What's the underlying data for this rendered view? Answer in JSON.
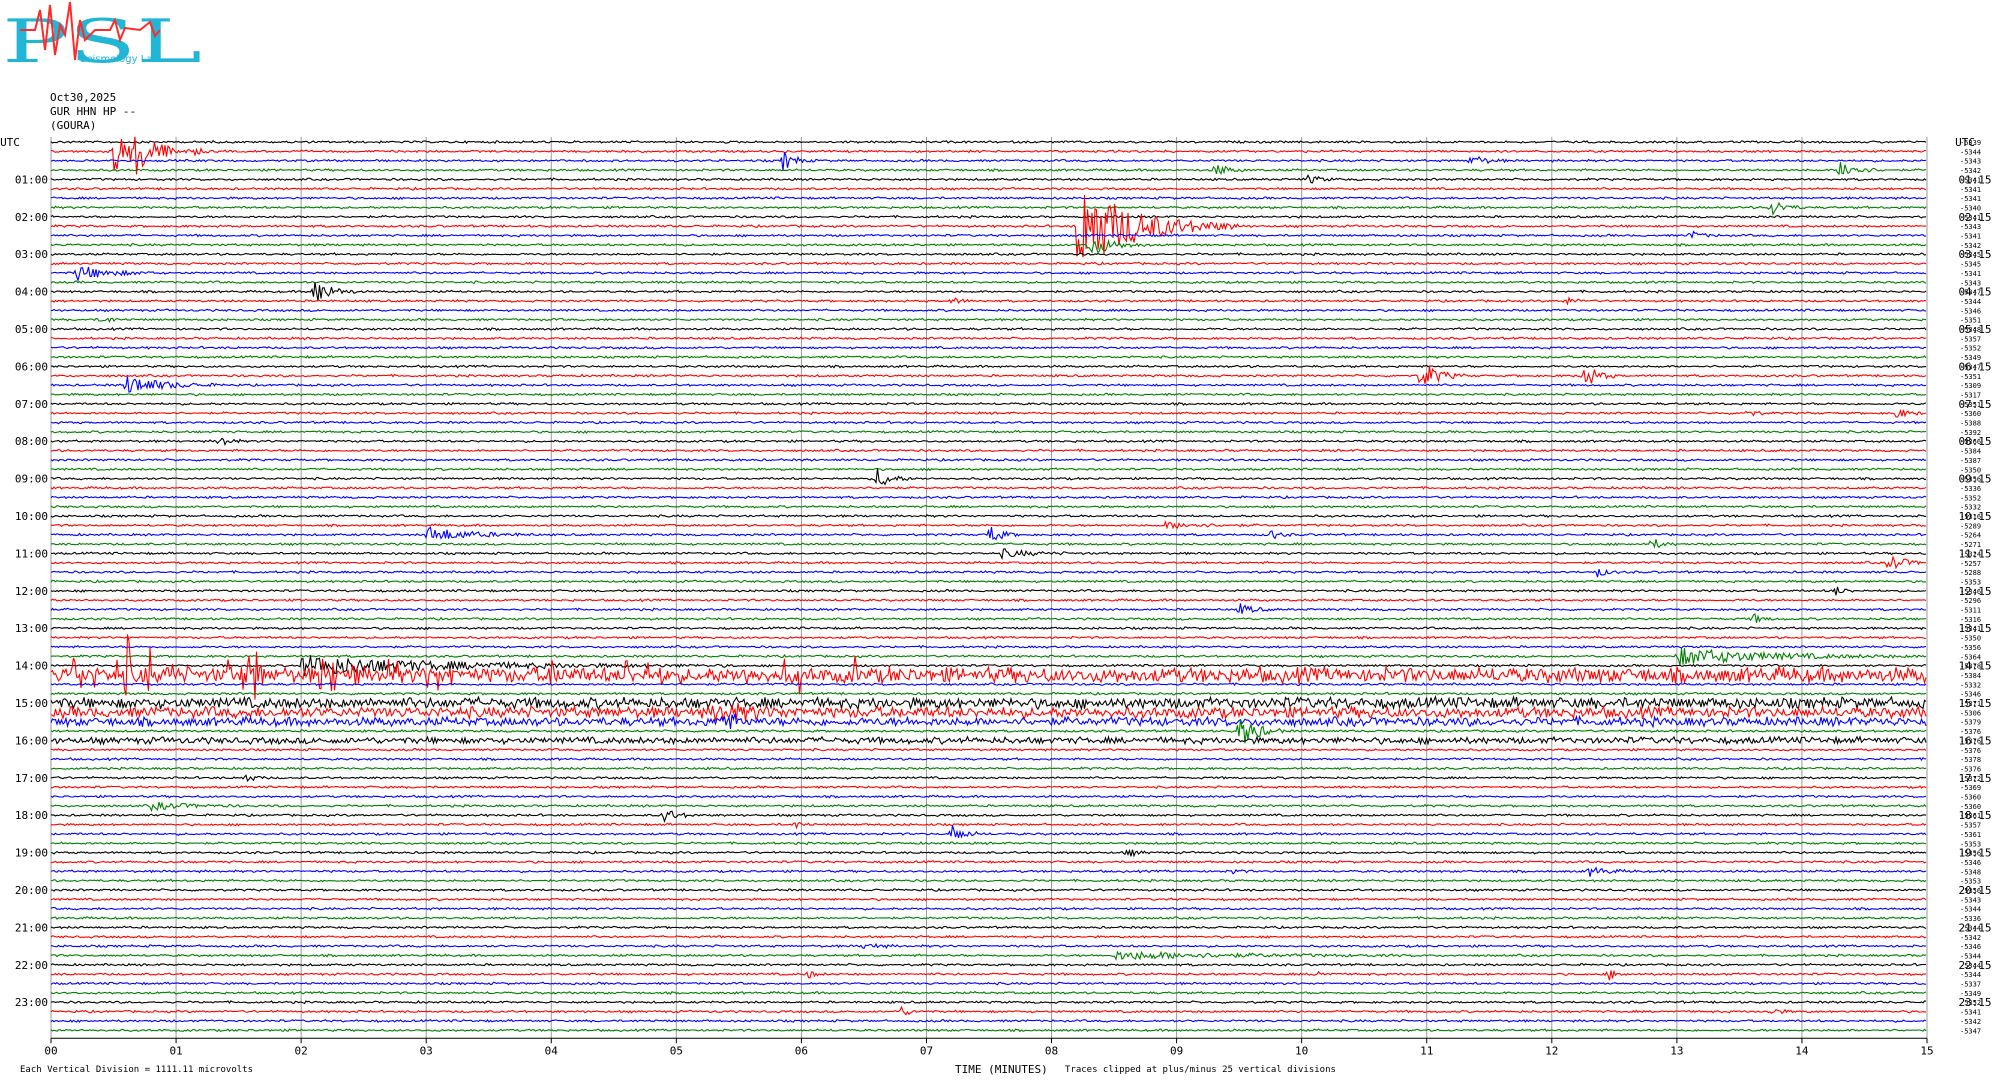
{
  "header": {
    "logo_text": "PSL",
    "logo_subtext": "Seismology Lab",
    "date": "Oct30,2025",
    "channel": "GUR HHN HP --",
    "station": "(GOURA)"
  },
  "footer": {
    "scale_note": "Each Vertical Division = 1111.11 microvolts",
    "clip_note": "Traces clipped at plus/minus 25 vertical divisions"
  },
  "colors": {
    "trace_cycle": [
      "#000000",
      "#ff0000",
      "#0000ff",
      "#008000"
    ],
    "grid": "#9a9a9a",
    "logo": "#21b5d6",
    "logo_red": "#ff2a2a"
  },
  "chart_data": {
    "type": "helicorder",
    "xlabel": "TIME (MINUTES)",
    "xlim": [
      0,
      15
    ],
    "x_ticks": [
      "00",
      "01",
      "02",
      "03",
      "04",
      "05",
      "06",
      "07",
      "08",
      "09",
      "10",
      "11",
      "12",
      "13",
      "14",
      "15"
    ],
    "left_axis_title": "UTC",
    "right_axis_title": "UTC",
    "left_hour_labels": [
      "01:00",
      "02:00",
      "03:00",
      "04:00",
      "05:00",
      "06:00",
      "07:00",
      "08:00",
      "09:00",
      "10:00",
      "11:00",
      "12:00",
      "13:00",
      "14:00",
      "15:00",
      "16:00",
      "17:00",
      "18:00",
      "19:00",
      "20:00",
      "21:00",
      "22:00",
      "23:00"
    ],
    "right_hour_labels": [
      "01:15",
      "02:15",
      "03:15",
      "04:15",
      "05:15",
      "06:15",
      "07:15",
      "08:15",
      "09:15",
      "10:15",
      "11:15",
      "12:15",
      "13:15",
      "14:15",
      "15:15",
      "16:15",
      "17:15",
      "18:15",
      "19:15",
      "20:15",
      "21:15",
      "22:15",
      "23:15"
    ],
    "trace_count": 96,
    "minutes_per_line": 15,
    "trace_offsets": [
      "-5339",
      "-5344",
      "-5343",
      "-5342",
      "-5341",
      "-5341",
      "-5341",
      "-5340",
      "-5341",
      "-5343",
      "-5341",
      "-5342",
      "-5345",
      "-5345",
      "-5341",
      "-5343",
      "-5347",
      "-5344",
      "-5346",
      "-5351",
      "-5348",
      "-5357",
      "-5352",
      "-5349",
      "-5347",
      "-5351",
      "-5309",
      "-5317",
      "-5351",
      "-5360",
      "-5388",
      "-5392",
      "-5366",
      "-5384",
      "-5387",
      "-5350",
      "-5356",
      "-5336",
      "-5352",
      "-5332",
      "-5316",
      "-5289",
      "-5264",
      "-5271",
      "-5324",
      "-5257",
      "-5288",
      "-5353",
      "-5346",
      "-5296",
      "-5311",
      "-5316",
      "-5341",
      "-5350",
      "-5356",
      "-5364",
      "-5378",
      "-5384",
      "-5332",
      "-5346",
      "-5371",
      "-5306",
      "-5379",
      "-5376",
      "-5376",
      "-5376",
      "-5378",
      "-5376",
      "-5372",
      "-5369",
      "-5360",
      "-5360",
      "-5361",
      "-5357",
      "-5361",
      "-5353",
      "-5356",
      "-5346",
      "-5348",
      "-5353",
      "-5356",
      "-5343",
      "-5344",
      "-5336",
      "-5344",
      "-5342",
      "-5346",
      "-5344",
      "-5344",
      "-5344",
      "-5337",
      "-5349",
      "-5352",
      "-5341",
      "-5342",
      "-5347"
    ],
    "events": [
      {
        "row": 1,
        "minute": 0.5,
        "amp": 24,
        "dur": 0.5
      },
      {
        "row": 1,
        "minute": 0.68,
        "amp": 20,
        "dur": 0.45
      },
      {
        "row": 1,
        "minute": 1.15,
        "amp": 4,
        "dur": 0.15
      },
      {
        "row": 2,
        "minute": 5.85,
        "amp": 11,
        "dur": 0.25
      },
      {
        "row": 2,
        "minute": 11.35,
        "amp": 7,
        "dur": 0.3
      },
      {
        "row": 3,
        "minute": 9.3,
        "amp": 7,
        "dur": 0.3
      },
      {
        "row": 3,
        "minute": 14.3,
        "amp": 12,
        "dur": 0.35
      },
      {
        "row": 4,
        "minute": 10.05,
        "amp": 4,
        "dur": 0.3
      },
      {
        "row": 7,
        "minute": 13.75,
        "amp": 9,
        "dur": 0.3
      },
      {
        "row": 9,
        "minute": 8.2,
        "amp": 48,
        "dur": 1.3
      },
      {
        "row": 10,
        "minute": 13.1,
        "amp": 5,
        "dur": 0.25
      },
      {
        "row": 11,
        "minute": 8.3,
        "amp": 12,
        "dur": 0.5
      },
      {
        "row": 14,
        "minute": 0.2,
        "amp": 8,
        "dur": 0.7
      },
      {
        "row": 16,
        "minute": 2.1,
        "amp": 16,
        "dur": 0.35
      },
      {
        "row": 17,
        "minute": 12.1,
        "amp": 5,
        "dur": 0.2
      },
      {
        "row": 17,
        "minute": 7.2,
        "amp": 4,
        "dur": 0.2
      },
      {
        "row": 19,
        "minute": 0.4,
        "amp": 5,
        "dur": 0.2
      },
      {
        "row": 25,
        "minute": 10.95,
        "amp": 18,
        "dur": 0.35
      },
      {
        "row": 25,
        "minute": 12.25,
        "amp": 14,
        "dur": 0.3
      },
      {
        "row": 26,
        "minute": 0.6,
        "amp": 10,
        "dur": 0.8
      },
      {
        "row": 29,
        "minute": 13.55,
        "amp": 5,
        "dur": 0.2
      },
      {
        "row": 29,
        "minute": 14.75,
        "amp": 5,
        "dur": 0.3
      },
      {
        "row": 32,
        "minute": 1.35,
        "amp": 7,
        "dur": 0.2
      },
      {
        "row": 36,
        "minute": 6.6,
        "amp": 12,
        "dur": 0.3
      },
      {
        "row": 42,
        "minute": 3.0,
        "amp": 8,
        "dur": 0.9
      },
      {
        "row": 42,
        "minute": 7.5,
        "amp": 11,
        "dur": 0.25
      },
      {
        "row": 42,
        "minute": 9.75,
        "amp": 5,
        "dur": 0.2
      },
      {
        "row": 41,
        "minute": 8.9,
        "amp": 3,
        "dur": 0.9
      },
      {
        "row": 43,
        "minute": 12.8,
        "amp": 7,
        "dur": 0.2
      },
      {
        "row": 44,
        "minute": 7.6,
        "amp": 4,
        "dur": 0.7
      },
      {
        "row": 45,
        "minute": 14.7,
        "amp": 10,
        "dur": 0.3
      },
      {
        "row": 46,
        "minute": 12.35,
        "amp": 6,
        "dur": 0.2
      },
      {
        "row": 48,
        "minute": 14.25,
        "amp": 6,
        "dur": 0.2
      },
      {
        "row": 50,
        "minute": 9.5,
        "amp": 6,
        "dur": 0.3
      },
      {
        "row": 51,
        "minute": 13.6,
        "amp": 6,
        "dur": 0.2
      },
      {
        "row": 56,
        "minute": 2.0,
        "amp": 10,
        "dur": 3.5
      },
      {
        "row": 55,
        "minute": 13.0,
        "amp": 9,
        "dur": 2.0
      },
      {
        "row": 61,
        "minute": 5.3,
        "amp": 8,
        "dur": 0.8
      },
      {
        "row": 62,
        "minute": 5.35,
        "amp": 12,
        "dur": 0.3
      },
      {
        "row": 63,
        "minute": 9.5,
        "amp": 18,
        "dur": 0.4
      },
      {
        "row": 68,
        "minute": 1.55,
        "amp": 5,
        "dur": 0.2
      },
      {
        "row": 71,
        "minute": 0.8,
        "amp": 4,
        "dur": 0.8
      },
      {
        "row": 72,
        "minute": 4.9,
        "amp": 7,
        "dur": 0.3
      },
      {
        "row": 73,
        "minute": 5.95,
        "amp": 5,
        "dur": 0.15
      },
      {
        "row": 74,
        "minute": 7.2,
        "amp": 9,
        "dur": 0.3
      },
      {
        "row": 76,
        "minute": 8.6,
        "amp": 5,
        "dur": 0.2
      },
      {
        "row": 78,
        "minute": 9.45,
        "amp": 3,
        "dur": 0.15
      },
      {
        "row": 78,
        "minute": 12.3,
        "amp": 5,
        "dur": 0.4
      },
      {
        "row": 86,
        "minute": 6.5,
        "amp": 4,
        "dur": 0.3
      },
      {
        "row": 87,
        "minute": 8.5,
        "amp": 4,
        "dur": 2.5
      },
      {
        "row": 89,
        "minute": 12.45,
        "amp": 6,
        "dur": 0.2
      },
      {
        "row": 89,
        "minute": 6.05,
        "amp": 5,
        "dur": 0.15
      },
      {
        "row": 89,
        "minute": 10.1,
        "amp": 4,
        "dur": 0.2
      },
      {
        "row": 93,
        "minute": 6.8,
        "amp": 5,
        "dur": 0.2
      },
      {
        "row": 93,
        "minute": 13.75,
        "amp": 4,
        "dur": 0.2
      },
      {
        "row": 96,
        "minute": 13.25,
        "amp": 10,
        "dur": 0.25
      }
    ],
    "noisy_rows": [
      {
        "row": 57,
        "amp": 7,
        "spikes": 40
      },
      {
        "row": 60,
        "amp": 5,
        "spikes": 0
      },
      {
        "row": 61,
        "amp": 5,
        "spikes": 0
      },
      {
        "row": 62,
        "amp": 4,
        "spikes": 0
      },
      {
        "row": 64,
        "amp": 3,
        "spikes": 0
      }
    ]
  }
}
